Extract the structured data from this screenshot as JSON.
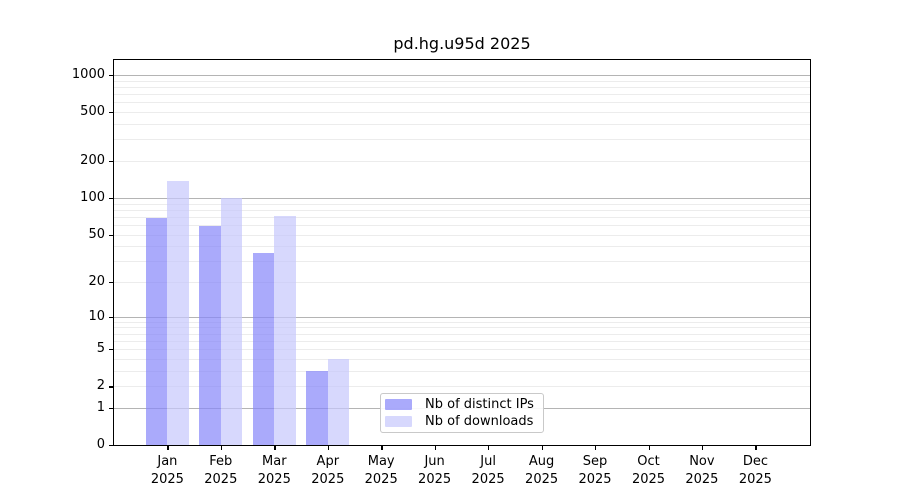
{
  "chart_data": {
    "type": "bar",
    "title": "pd.hg.u95d 2025",
    "x_tick_months": [
      "Jan",
      "Feb",
      "Mar",
      "Apr",
      "May",
      "Jun",
      "Jul",
      "Aug",
      "Sep",
      "Oct",
      "Nov",
      "Dec"
    ],
    "x_tick_year": "2025",
    "y_ticks": [
      0,
      1,
      2,
      5,
      10,
      20,
      50,
      100,
      200,
      500,
      1000
    ],
    "y_scale": "log10(1+y)",
    "y_major_gridlines": [
      1,
      10,
      100,
      1000
    ],
    "grid": true,
    "legend_position": "lower center-right inside plot",
    "series": [
      {
        "name": "Nb of distinct IPs",
        "color": "rgba(134,134,250,0.7)",
        "values": [
          68,
          59,
          35,
          3,
          0,
          0,
          0,
          0,
          0,
          0,
          0,
          0
        ]
      },
      {
        "name": "Nb of downloads",
        "color": "rgba(198,200,252,0.7)",
        "values": [
          137,
          100,
          71,
          4,
          0,
          0,
          0,
          0,
          0,
          0,
          0,
          0
        ]
      }
    ],
    "colors": {
      "background": "#ffffff",
      "spine": "#000000",
      "grid_major": "#b4b4b4",
      "grid_minor": "#ececec",
      "text": "#000000"
    }
  }
}
